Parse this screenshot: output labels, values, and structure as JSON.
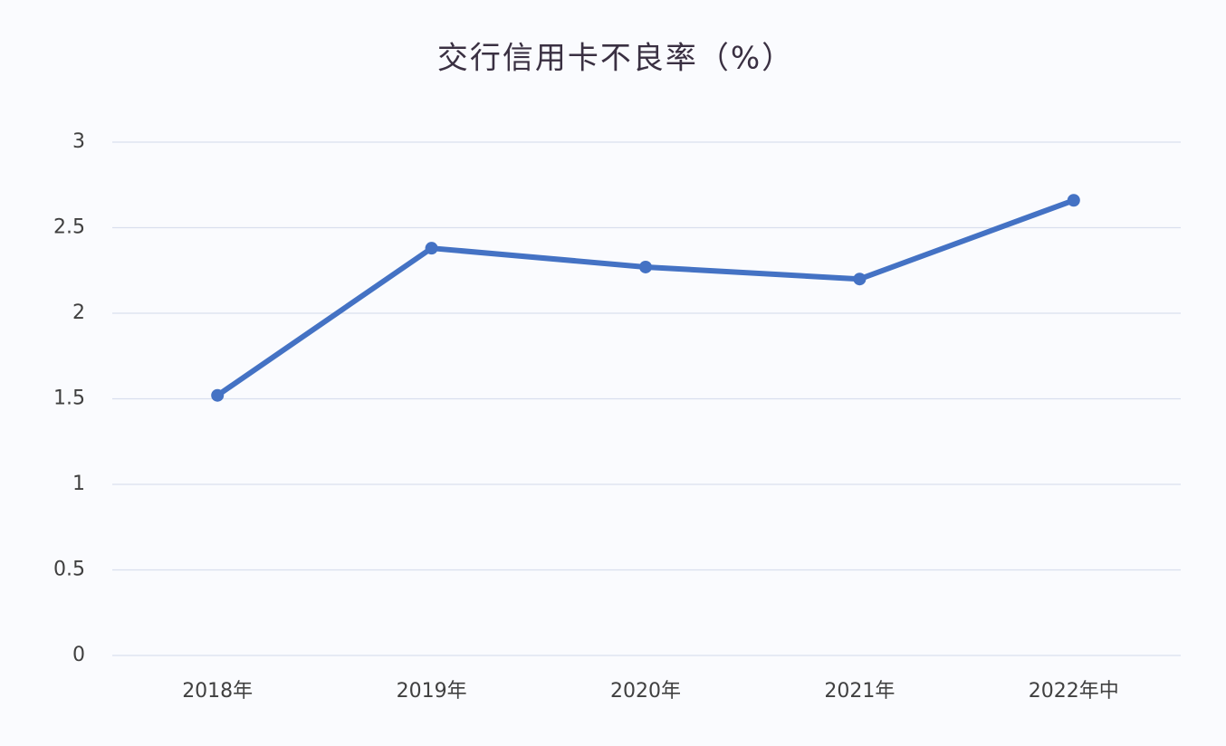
{
  "chart_data": {
    "type": "line",
    "title": "交行信用卡不良率（%）",
    "categories": [
      "2018年",
      "2019年",
      "2020年",
      "2021年",
      "2022年中"
    ],
    "series": [
      {
        "name": "交行信用卡不良率",
        "color": "#4472c4",
        "values": [
          1.52,
          2.38,
          2.27,
          2.2,
          2.66
        ]
      }
    ],
    "ylim": [
      0,
      3
    ],
    "yticks": [
      0,
      0.5,
      1,
      1.5,
      2,
      2.5,
      3
    ],
    "grid": true
  }
}
